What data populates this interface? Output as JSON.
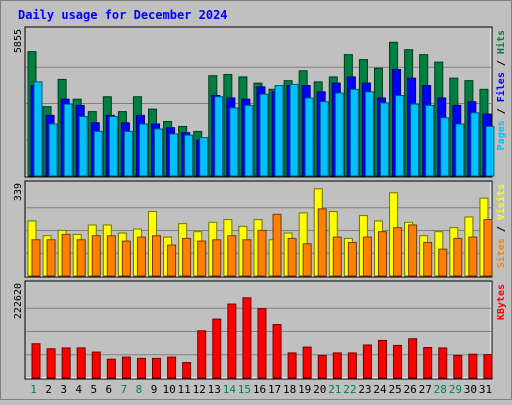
{
  "chart_data": {
    "type": "bar",
    "title": "Daily usage for December 2024",
    "categories": [
      "1",
      "2",
      "3",
      "4",
      "5",
      "6",
      "7",
      "8",
      "9",
      "10",
      "11",
      "12",
      "13",
      "14",
      "15",
      "16",
      "17",
      "18",
      "19",
      "20",
      "21",
      "22",
      "23",
      "24",
      "25",
      "26",
      "27",
      "28",
      "29",
      "30",
      "31"
    ],
    "weekend_days": [
      "1",
      "7",
      "8",
      "14",
      "15",
      "21",
      "22",
      "28",
      "29"
    ],
    "panels": [
      {
        "id": "top",
        "max_label": "5855",
        "ymax": 5855,
        "legend": [
          {
            "name": "Pages",
            "color": "#00c0ff"
          },
          {
            "name": "Files",
            "color": "#0000ff"
          },
          {
            "name": "Hits",
            "color": "#008040"
          }
        ],
        "series": [
          {
            "name": "Hits",
            "color": "#008040",
            "values": [
              5020,
              2800,
              3900,
              3100,
              2600,
              3200,
              2600,
              3200,
              2700,
              2200,
              2000,
              1800,
              4050,
              4100,
              4000,
              3750,
              3500,
              3850,
              4250,
              3800,
              4000,
              4900,
              4700,
              4350,
              5400,
              5100,
              4900,
              4600,
              3950,
              3850,
              3500
            ]
          },
          {
            "name": "Files",
            "color": "#0000ff",
            "values": [
              3650,
              2450,
              3100,
              2850,
              2150,
              2450,
              2150,
              2450,
              2100,
              1950,
              1750,
              1450,
              3250,
              3150,
              3100,
              3600,
              3400,
              3650,
              3650,
              3400,
              3750,
              4000,
              3750,
              3150,
              4300,
              3950,
              3650,
              3150,
              2850,
              3000,
              2500
            ]
          },
          {
            "name": "Pages",
            "color": "#00c0ff",
            "values": [
              3800,
              2100,
              2900,
              2400,
              1800,
              2400,
              1800,
              2100,
              1900,
              1700,
              1650,
              1550,
              3200,
              2750,
              2850,
              3300,
              3650,
              3700,
              3150,
              3000,
              3350,
              3500,
              3400,
              2950,
              3250,
              2900,
              2850,
              2350,
              2100,
              2550,
              2000
            ]
          }
        ]
      },
      {
        "id": "middle",
        "max_label": "339",
        "ymax": 339,
        "legend": [
          {
            "name": "Sites",
            "color": "#ff8000"
          },
          {
            "name": "Visits",
            "color": "#ffff00"
          }
        ],
        "series": [
          {
            "name": "Visits",
            "color": "#ffff00",
            "values": [
              205,
              150,
              170,
              155,
              190,
              190,
              160,
              175,
              240,
              145,
              195,
              165,
              200,
              210,
              185,
              210,
              135,
              160,
              235,
              325,
              240,
              140,
              225,
              205,
              310,
              200,
              150,
              165,
              180,
              220,
              290
            ]
          },
          {
            "name": "Sites",
            "color": "#ff8000",
            "values": [
              135,
              135,
              155,
              135,
              150,
              150,
              130,
              145,
              150,
              115,
              140,
              130,
              135,
              150,
              135,
              170,
              230,
              140,
              120,
              250,
              145,
              125,
              145,
              165,
              180,
              190,
              125,
              100,
              140,
              145,
              210
            ]
          }
        ]
      },
      {
        "id": "bottom",
        "max_label": "222620",
        "ymax": 222620,
        "legend": [
          {
            "name": "KBytes",
            "color": "#ff0000"
          }
        ],
        "series": [
          {
            "name": "KBytes",
            "color": "#ff0000",
            "values": [
              82000,
              70000,
              72000,
              72000,
              62000,
              45000,
              50000,
              47000,
              47000,
              50000,
              37000,
              113000,
              141000,
              177000,
              192000,
              166000,
              128000,
              60000,
              74000,
              54000,
              60000,
              60000,
              79000,
              90000,
              78000,
              94000,
              73000,
              72000,
              54000,
              57000,
              56000
            ]
          }
        ]
      }
    ]
  }
}
